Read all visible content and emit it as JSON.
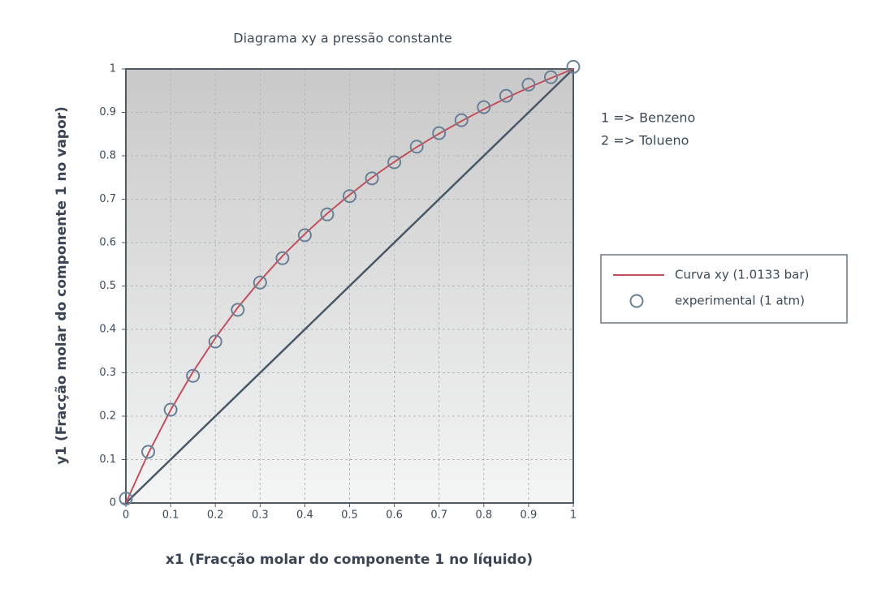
{
  "chart_data": {
    "type": "line",
    "title": "Diagrama xy a pressão constante",
    "xlabel": "x1  (Fracção molar do componente 1 no líquido)",
    "ylabel": "y1  (Fracção molar do componente 1 no vapor)",
    "annotations": [
      "1 => Benzeno",
      "2 => Tolueno"
    ],
    "xlim": [
      0,
      1
    ],
    "ylim": [
      0,
      1
    ],
    "xticks": [
      0,
      0.1,
      0.2,
      0.3,
      0.4,
      0.5,
      0.6,
      0.7,
      0.8,
      0.9,
      1
    ],
    "yticks": [
      0,
      0.1,
      0.2,
      0.3,
      0.4,
      0.5,
      0.6,
      0.7,
      0.8,
      0.9,
      1
    ],
    "grid": true,
    "diagonal": true,
    "diagonal_color": "#4a5868",
    "series": [
      {
        "name": "Curva  xy  (1.0133 bar)",
        "type": "line",
        "color": "#c2505c",
        "x": [
          0,
          0.05,
          0.1,
          0.15,
          0.2,
          0.25,
          0.3,
          0.35,
          0.4,
          0.45,
          0.5,
          0.55,
          0.6,
          0.65,
          0.7,
          0.75,
          0.8,
          0.85,
          0.9,
          0.95,
          1
        ],
        "values": [
          0,
          0.114,
          0.214,
          0.302,
          0.38,
          0.45,
          0.512,
          0.569,
          0.62,
          0.667,
          0.71,
          0.75,
          0.786,
          0.82,
          0.851,
          0.88,
          0.907,
          0.933,
          0.957,
          0.979,
          1
        ]
      },
      {
        "name": "experimental (1 atm)",
        "type": "scatter",
        "color": "#6a8096",
        "x": [
          0,
          0.05,
          0.1,
          0.15,
          0.2,
          0.25,
          0.3,
          0.35,
          0.4,
          0.45,
          0.5,
          0.55,
          0.6,
          0.65,
          0.7,
          0.75,
          0.8,
          0.85,
          0.9,
          0.95,
          1
        ],
        "values": [
          0.01,
          0.118,
          0.215,
          0.293,
          0.372,
          0.445,
          0.508,
          0.564,
          0.617,
          0.665,
          0.707,
          0.748,
          0.785,
          0.821,
          0.852,
          0.882,
          0.912,
          0.938,
          0.964,
          0.981,
          1.005
        ]
      }
    ]
  }
}
